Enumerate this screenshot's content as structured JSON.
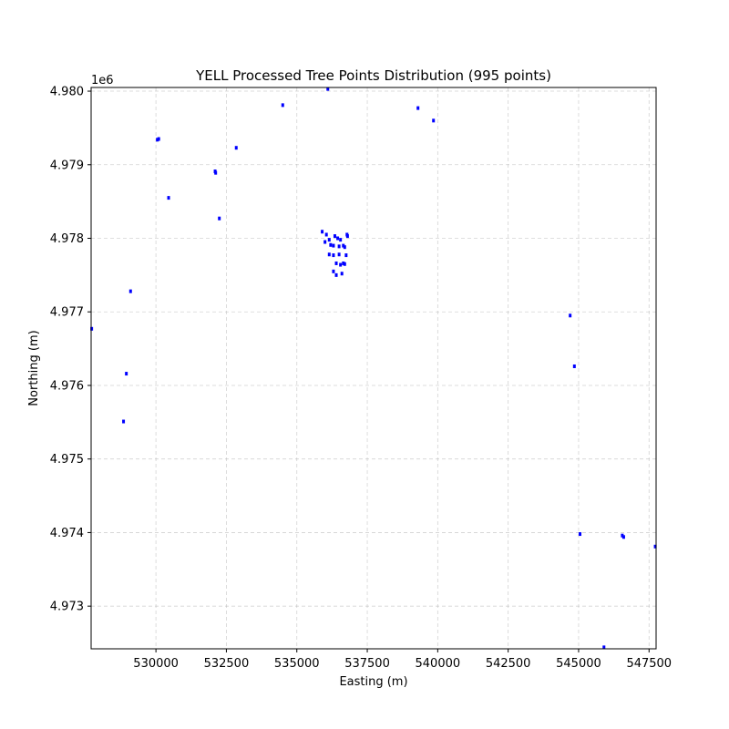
{
  "chart_data": {
    "type": "scatter",
    "title": "YELL Processed Tree Points Distribution (995 points)",
    "xlabel": "Easting (m)",
    "ylabel": "Northing (m)",
    "y_offset_label": "1e6",
    "xlim": [
      527700,
      547750
    ],
    "ylim": [
      4972420,
      4980050
    ],
    "x_ticks": [
      530000,
      532500,
      535000,
      537500,
      540000,
      542500,
      545000,
      547500
    ],
    "y_ticks": [
      4973000,
      4974000,
      4975000,
      4976000,
      4977000,
      4978000,
      4979000,
      4980000
    ],
    "x_tick_labels": [
      "530000",
      "532500",
      "535000",
      "537500",
      "540000",
      "542500",
      "545000",
      "547500"
    ],
    "y_tick_labels": [
      "4.973",
      "4.974",
      "4.975",
      "4.976",
      "4.977",
      "4.978",
      "4.979",
      "4.980"
    ],
    "grid": true,
    "marker_color": "#0000ff",
    "series": [
      {
        "x": [
          536100,
          534500,
          539300,
          539850,
          530050,
          530100,
          532850,
          532100,
          532120,
          530450,
          532250,
          529100,
          527720,
          528950,
          528850,
          544700,
          544850,
          545050,
          546550,
          546600,
          547720,
          545900,
          535900,
          536050,
          536150,
          536350,
          536450,
          536550,
          536800,
          536780,
          536000,
          536200,
          536300,
          536500,
          536650,
          536700,
          536150,
          536300,
          536500,
          536750,
          536400,
          536550,
          536650,
          536700,
          536300,
          536400,
          536600
        ],
        "y": [
          4980030,
          4979810,
          4979770,
          4979600,
          4979340,
          4979350,
          4979230,
          4978910,
          4978890,
          4978550,
          4978270,
          4977280,
          4976770,
          4976160,
          4975510,
          4976950,
          4976260,
          4973980,
          4973960,
          4973940,
          4973810,
          4972440,
          4978090,
          4978050,
          4977980,
          4978030,
          4978000,
          4977980,
          4978030,
          4978050,
          4977950,
          4977910,
          4977900,
          4977890,
          4977900,
          4977880,
          4977780,
          4977770,
          4977780,
          4977770,
          4977660,
          4977640,
          4977660,
          4977650,
          4977550,
          4977500,
          4977520
        ]
      }
    ]
  }
}
